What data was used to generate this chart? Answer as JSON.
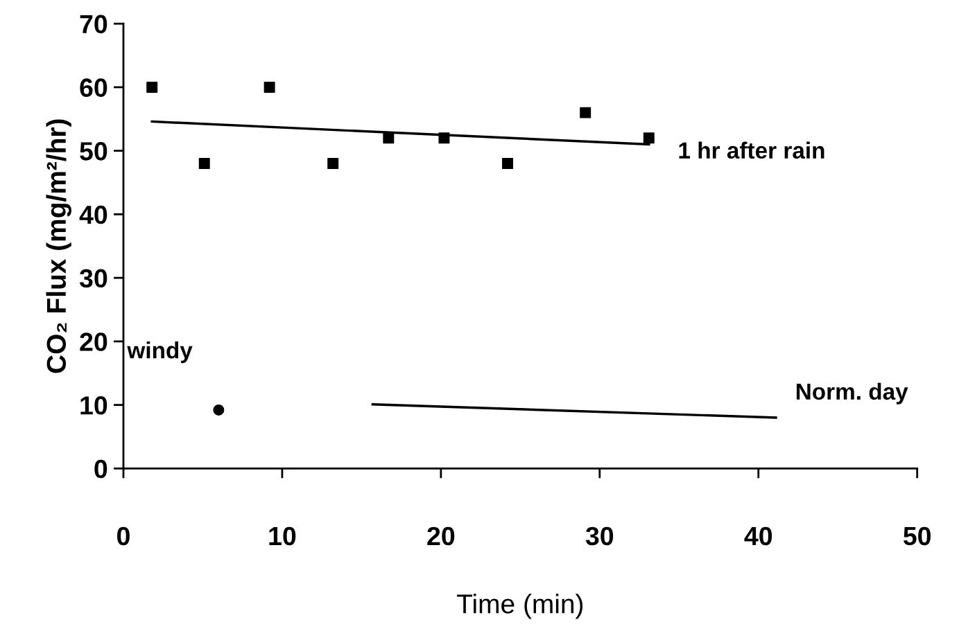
{
  "chart_data": {
    "type": "scatter",
    "xlabel": "Time (min)",
    "ylabel": "CO₂ Flux (mg/m²/hr)",
    "xlim": [
      0,
      50
    ],
    "ylim": [
      0,
      70
    ],
    "xticks": [
      0,
      10,
      20,
      30,
      40,
      50
    ],
    "yticks": [
      0,
      10,
      20,
      30,
      40,
      50,
      60,
      70
    ],
    "series": [
      {
        "name": "1 hr after rain",
        "marker": "square",
        "color": "#000000",
        "x": [
          1.8,
          5.1,
          9.2,
          13.2,
          16.7,
          20.2,
          24.2,
          29.1,
          33.1
        ],
        "values": [
          60,
          48,
          60,
          48,
          52,
          52,
          48,
          56,
          52
        ]
      },
      {
        "type": "line",
        "marker": "none",
        "line_style": "solid",
        "color": "#000000",
        "x": [
          1.8,
          33.1
        ],
        "values": [
          54.6,
          51.0
        ]
      },
      {
        "name": "windy",
        "marker": "circle",
        "color": "#000000",
        "x": [
          6.0
        ],
        "values": [
          9.2
        ]
      },
      {
        "name": "Norm. day",
        "type": "line",
        "marker": "none",
        "line_style": "solid",
        "color": "#000000",
        "x": [
          15.7,
          41.1
        ],
        "values": [
          10.1,
          8.0
        ]
      }
    ]
  }
}
